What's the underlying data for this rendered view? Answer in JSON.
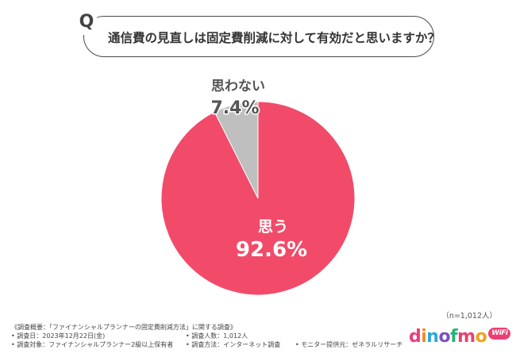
{
  "question": {
    "mark": "Q",
    "text": "通信費の見直しは固定費削減に対して有効だと思いますか？"
  },
  "chart_data": {
    "type": "pie",
    "slices": [
      {
        "label": "思う",
        "value": 92.6,
        "display": "92.6%",
        "color": "#f14b69"
      },
      {
        "label": "思わない",
        "value": 7.4,
        "display": "7.4%",
        "color": "#bfbfbf"
      }
    ],
    "start": "12 o'clock",
    "direction": "clockwise"
  },
  "sample_size": "（n=1,012人）",
  "footnote": {
    "title": "《調査概要：「ファイナンシャルプランナーの固定費削減方法」に関する調査》",
    "items": [
      "• 調査日：2023年12月22日(金)",
      "• 調査人数：1,012人",
      "• 調査対象：ファイナンシャルプランナー2級以上保有者",
      "• 調査方法：インターネット調査",
      "• モニター提供元：ゼネラルリサーチ"
    ]
  },
  "logo": {
    "letters": [
      "d",
      "i",
      "n",
      "o",
      "f",
      "m",
      "o"
    ],
    "letter_colors": [
      "#e83f7b",
      "#f08a24",
      "#2aa9d8",
      "#7c4fc1",
      "#22b37a",
      "#ea3f74",
      "#f0a21c"
    ],
    "badge": "WiFi"
  }
}
